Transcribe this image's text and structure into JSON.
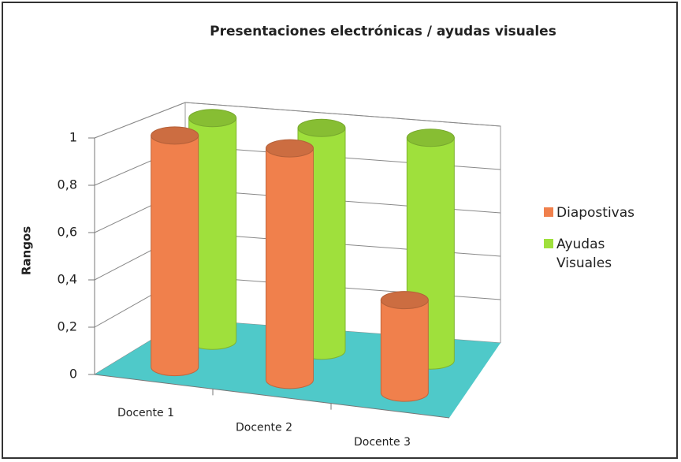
{
  "chart_data": {
    "type": "bar3d",
    "title": "Presentaciones electrónicas / ayudas visuales",
    "ylabel": "Rangos",
    "categories": [
      "Docente 1",
      "Docente 2",
      "Docente 3"
    ],
    "series": [
      {
        "name": "Diapostivas",
        "color": "#f0804c",
        "values": [
          1,
          1,
          0.4
        ]
      },
      {
        "name": "Ayudas Visuales",
        "color": "#9fe03c",
        "values": [
          1,
          1,
          1
        ]
      }
    ],
    "ylim": [
      0,
      1
    ],
    "yticks": [
      0,
      {
        "value": 0.2,
        "label": "0,2"
      },
      {
        "value": 0.4,
        "label": "0,4"
      },
      {
        "value": 0.6,
        "label": "0,6"
      },
      {
        "value": 0.8,
        "label": "0,8"
      },
      1
    ],
    "grid": true,
    "legend": "right",
    "floor_color": "#4fc9c9"
  }
}
